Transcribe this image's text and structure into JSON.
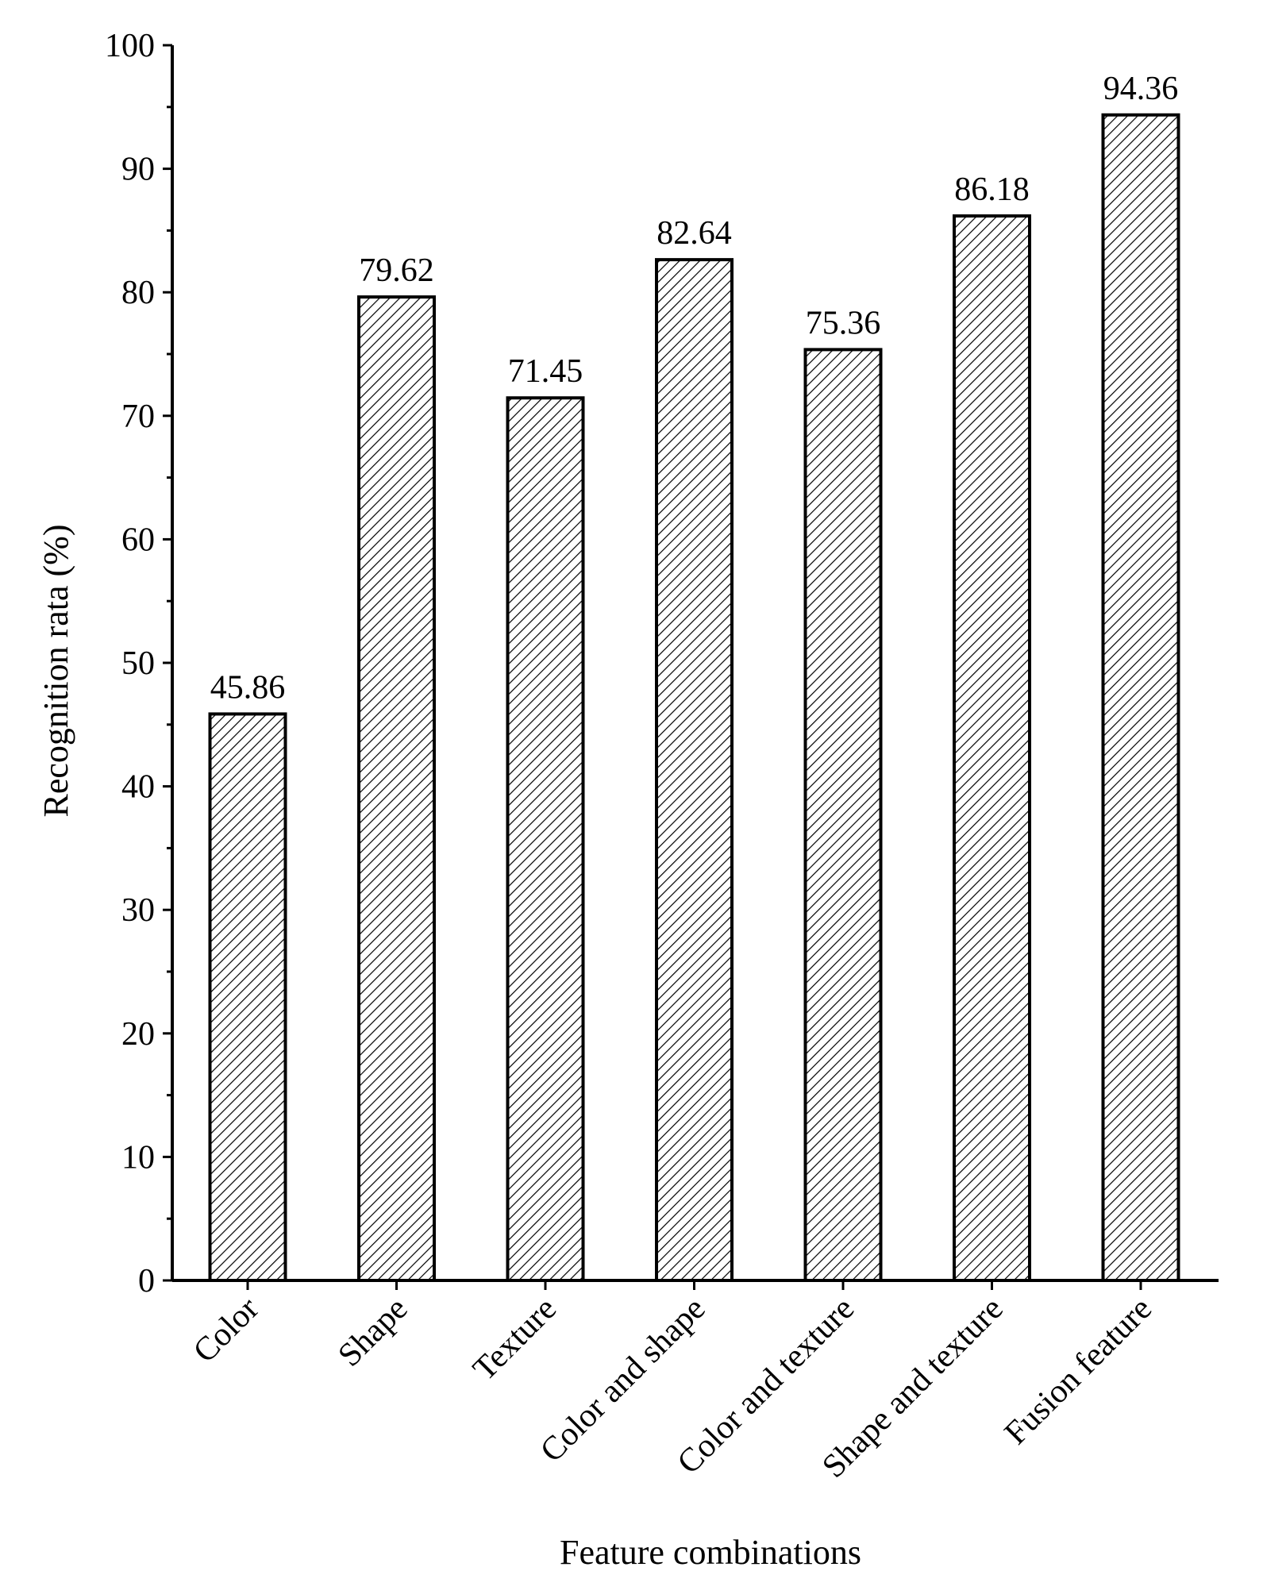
{
  "chart_data": {
    "type": "bar",
    "title": "",
    "xlabel": "Feature combinations",
    "ylabel": "Recognition rata (%)",
    "ylim": [
      0,
      100
    ],
    "yticks": [
      0,
      10,
      20,
      30,
      40,
      50,
      60,
      70,
      80,
      90,
      100
    ],
    "grid": false,
    "categories": [
      "Color",
      "Shape",
      "Texture",
      "Color and shape",
      "Color and texture",
      "Shape and texture",
      "Fusion feature"
    ],
    "values": [
      45.86,
      79.62,
      71.45,
      82.64,
      75.36,
      86.18,
      94.36
    ],
    "data_labels": [
      "45.86",
      "79.62",
      "71.45",
      "82.64",
      "75.36",
      "86.18",
      "94.36"
    ],
    "bar_fill": "hatched diagonal",
    "colors": {
      "bar_stroke": "#000000",
      "hatch": "#000000",
      "background": "#ffffff"
    }
  }
}
